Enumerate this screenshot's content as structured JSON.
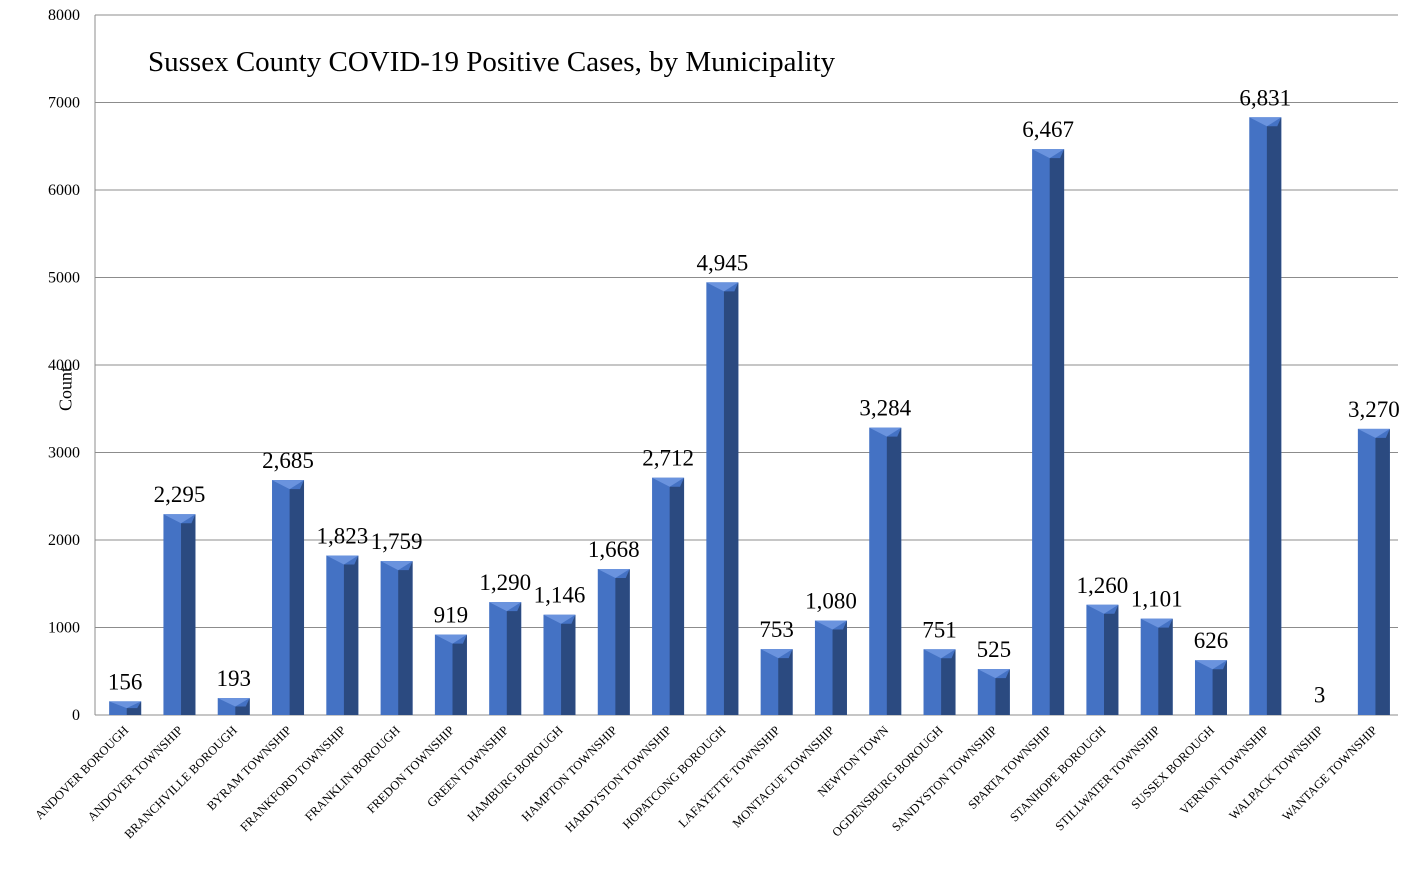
{
  "chart_data": {
    "type": "bar",
    "title": "Sussex County COVID-19 Positive Cases, by Municipality",
    "xlabel": "",
    "ylabel": "Count",
    "ylim": [
      0,
      8000
    ],
    "yticks": [
      "0",
      "1000",
      "2000",
      "3000",
      "4000",
      "5000",
      "6000",
      "7000",
      "8000"
    ],
    "grid": true,
    "categories": [
      "ANDOVER BOROUGH",
      "ANDOVER TOWNSHIP",
      "BRANCHVILLE BOROUGH",
      "BYRAM TOWNSHIP",
      "FRANKFORD TOWNSHIP",
      "FRANKLIN BOROUGH",
      "FREDON TOWNSHIP",
      "GREEN TOWNSHIP",
      "HAMBURG BOROUGH",
      "HAMPTON TOWNSHIP",
      "HARDYSTON TOWNSHIP",
      "HOPATCONG BOROUGH",
      "LAFAYETTE TOWNSHIP",
      "MONTAGUE TOWNSHIP",
      "NEWTON TOWN",
      "OGDENSBURG BOROUGH",
      "SANDYSTON TOWNSHIP",
      "SPARTA TOWNSHIP",
      "STANHOPE BOROUGH",
      "STILLWATER TOWNSHIP",
      "SUSSEX BOROUGH",
      "VERNON TOWNSHIP",
      "WALPACK TOWNSHIP",
      "WANTAGE TOWNSHIP"
    ],
    "values": [
      156,
      2295,
      193,
      2685,
      1823,
      1759,
      919,
      1290,
      1146,
      1668,
      2712,
      4945,
      753,
      1080,
      3284,
      751,
      525,
      6467,
      1260,
      1101,
      626,
      6831,
      3,
      3270
    ],
    "data_labels": [
      "156",
      "2,295",
      "193",
      "2,685",
      "1,823",
      "1,759",
      "919",
      "1,290",
      "1,146",
      "1,668",
      "2,712",
      "4,945",
      "753",
      "1,080",
      "3,284",
      "751",
      "525",
      "6,467",
      "1,260",
      "1,101",
      "626",
      "6,831",
      "3",
      "3,270"
    ],
    "colors": {
      "bar_front": "#4472C4",
      "bar_side": "#2B4A80",
      "bar_top": "#6A93DE",
      "grid": "#8C8C8C"
    }
  }
}
